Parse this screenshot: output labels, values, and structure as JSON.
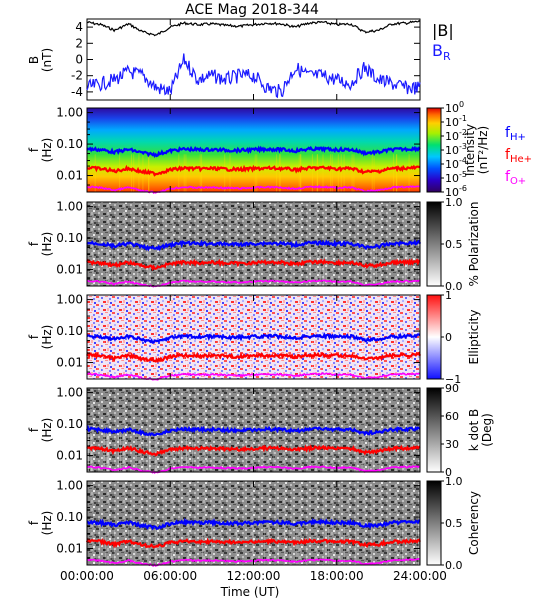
{
  "title": "ACE Mag 2018-344",
  "xlabel": "Time (UT)",
  "x_ticks": [
    "00:00:00",
    "06:00:00",
    "12:00:00",
    "18:00:00",
    "24:00:00"
  ],
  "colors": {
    "B_total": "#000000",
    "B_R": "#1a1aff",
    "f_H": "#0000ff",
    "f_He": "#ff0000",
    "f_O": "#ff00ff"
  },
  "field_panel": {
    "ylabel": "B",
    "yunit": "(nT)",
    "yticks": [
      "4",
      "2",
      "0",
      "-2",
      "-4"
    ],
    "legend_B": "|B|",
    "legend_BR_main": "B",
    "legend_BR_sub": "R"
  },
  "freq_panels_ylabel": {
    "main": "f",
    "unit": "(Hz)"
  },
  "freq_yticks": [
    "1.00",
    "0.10",
    "0.01"
  ],
  "gyro_labels": {
    "H": {
      "main": "f",
      "sub": "H+"
    },
    "He": {
      "main": "f",
      "sub": "He+"
    },
    "O": {
      "main": "f",
      "sub": "O+"
    }
  },
  "colorbars": [
    {
      "label": "Intensity",
      "unit": "(nT²/Hz)",
      "scale": "rainbow",
      "ticks": [
        {
          "b": "10",
          "e": "0"
        },
        {
          "b": "10",
          "e": "-1"
        },
        {
          "b": "10",
          "e": "-2"
        },
        {
          "b": "10",
          "e": "-3"
        },
        {
          "b": "10",
          "e": "-4"
        },
        {
          "b": "10",
          "e": "-5"
        },
        {
          "b": "10",
          "e": "-6"
        }
      ]
    },
    {
      "label": "% Polarization",
      "unit": "",
      "scale": "gray",
      "ticks": [
        "1.0",
        "0.5",
        "0.0"
      ]
    },
    {
      "label": "Ellipticity",
      "unit": "",
      "scale": "bwr",
      "ticks": [
        "1",
        "0",
        "−1"
      ]
    },
    {
      "label": "k dot B",
      "unit": "(Deg)",
      "scale": "gray",
      "ticks": [
        "90",
        "60",
        "30",
        "0"
      ]
    },
    {
      "label": "Coherency",
      "unit": "",
      "scale": "gray",
      "ticks": [
        "1.0",
        "0.5",
        "0.0"
      ]
    }
  ],
  "chart_data": {
    "type": "line",
    "title": "ACE Mag 2018-344",
    "xlabel": "Time (UT)",
    "x_hours": [
      0,
      1,
      2,
      3,
      4,
      5,
      6,
      7,
      8,
      9,
      10,
      11,
      12,
      13,
      14,
      15,
      16,
      17,
      18,
      19,
      20,
      21,
      22,
      23,
      24
    ],
    "xlim": [
      0,
      24
    ],
    "field_ylim": [
      -5,
      5
    ],
    "freq_ylim": [
      0.003,
      1.4
    ],
    "series": [
      {
        "name": "|B|",
        "values": [
          4.6,
          4.3,
          3.6,
          4.4,
          3.4,
          3.0,
          4.0,
          4.5,
          4.3,
          4.4,
          4.2,
          4.1,
          4.3,
          4.5,
          4.4,
          4.0,
          4.5,
          4.6,
          4.3,
          4.4,
          3.4,
          3.6,
          4.4,
          4.5,
          4.7
        ]
      },
      {
        "name": "B_R",
        "values": [
          -3.5,
          -3.0,
          -2.5,
          -1.5,
          -2.0,
          -3.5,
          -4.0,
          0.0,
          -2.5,
          -2.0,
          -2.5,
          -2.0,
          -2.0,
          -3.5,
          -4.0,
          -1.0,
          -2.0,
          -2.0,
          -2.5,
          -3.0,
          -1.0,
          -2.5,
          -3.0,
          -3.5,
          -3.5
        ]
      },
      {
        "name": "f_H+",
        "values": [
          0.07,
          0.066,
          0.055,
          0.067,
          0.052,
          0.046,
          0.061,
          0.069,
          0.066,
          0.067,
          0.064,
          0.063,
          0.066,
          0.069,
          0.067,
          0.061,
          0.069,
          0.07,
          0.066,
          0.067,
          0.052,
          0.055,
          0.067,
          0.069,
          0.072
        ]
      },
      {
        "name": "f_He+",
        "values": [
          0.0176,
          0.0164,
          0.0137,
          0.0168,
          0.013,
          0.0114,
          0.0152,
          0.0171,
          0.0164,
          0.0168,
          0.016,
          0.0156,
          0.0164,
          0.0171,
          0.0168,
          0.0152,
          0.0171,
          0.0176,
          0.0164,
          0.0168,
          0.013,
          0.0137,
          0.0168,
          0.0171,
          0.0179
        ]
      },
      {
        "name": "f_O+",
        "values": [
          0.0044,
          0.0041,
          0.0034,
          0.0042,
          0.0032,
          0.0029,
          0.0038,
          0.0043,
          0.0041,
          0.0042,
          0.004,
          0.0039,
          0.0041,
          0.0043,
          0.0042,
          0.0038,
          0.0043,
          0.0044,
          0.0041,
          0.0042,
          0.0032,
          0.0034,
          0.0042,
          0.0043,
          0.0045
        ]
      }
    ]
  }
}
